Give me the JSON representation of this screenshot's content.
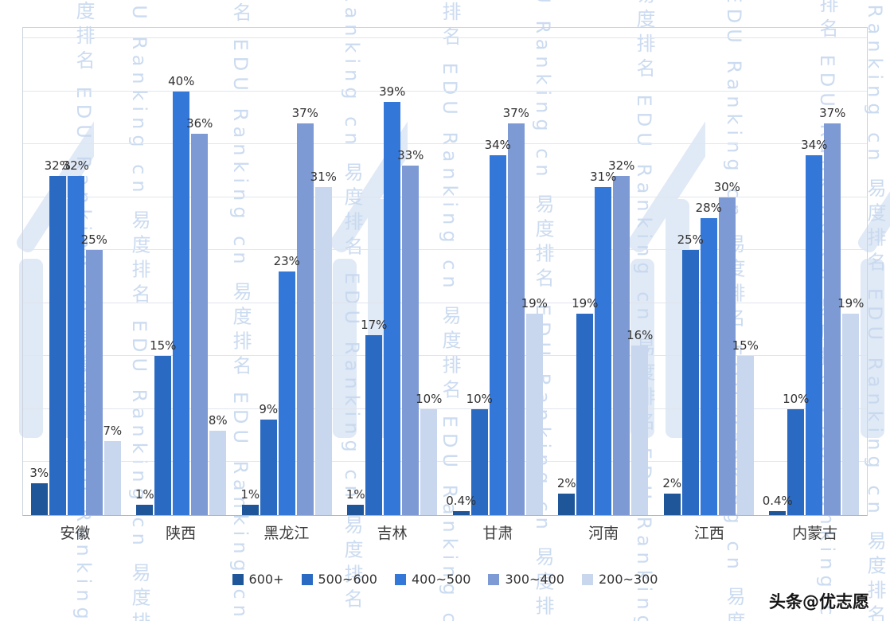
{
  "chart_data": {
    "type": "bar",
    "title": "",
    "categories": [
      "安徽",
      "陕西",
      "黑龙江",
      "吉林",
      "甘肃",
      "河南",
      "江西",
      "内蒙古"
    ],
    "series": [
      {
        "name": "600+",
        "color": "#1f5699",
        "values": [
          3,
          1,
          1,
          1,
          0.4,
          2,
          2,
          0.4
        ]
      },
      {
        "name": "500~600",
        "color": "#2a6ac2",
        "values": [
          32,
          15,
          9,
          17,
          10,
          19,
          25,
          10
        ]
      },
      {
        "name": "400~500",
        "color": "#3377d8",
        "values": [
          32,
          40,
          23,
          39,
          34,
          31,
          28,
          34
        ]
      },
      {
        "name": "300~400",
        "color": "#7e9ad4",
        "values": [
          25,
          36,
          37,
          33,
          37,
          32,
          30,
          37
        ]
      },
      {
        "name": "200~300",
        "color": "#c8d6ee",
        "values": [
          7,
          8,
          31,
          10,
          19,
          16,
          15,
          19
        ]
      }
    ],
    "value_label_suffix": "%",
    "ylim": [
      0,
      46
    ],
    "grid_step": 5,
    "grid": true,
    "legend_position": "bottom"
  },
  "watermark": {
    "cn": "易度排名",
    "en": "EDU Ranking cn"
  },
  "attribution": "头条@优志愿"
}
